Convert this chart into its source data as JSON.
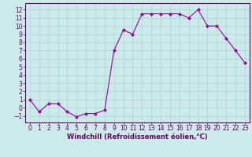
{
  "x": [
    0,
    1,
    2,
    3,
    4,
    5,
    6,
    7,
    8,
    9,
    10,
    11,
    12,
    13,
    14,
    15,
    16,
    17,
    18,
    19,
    20,
    21,
    22,
    23
  ],
  "y": [
    1.0,
    -0.5,
    0.5,
    0.5,
    -0.5,
    -1.1,
    -0.7,
    -0.7,
    -0.3,
    7.0,
    9.5,
    9.0,
    11.5,
    11.5,
    11.5,
    11.5,
    11.5,
    11.0,
    12.0,
    10.0,
    10.0,
    8.5,
    7.0,
    5.5
  ],
  "line_color": "#990099",
  "marker": "D",
  "marker_size": 2,
  "bg_color": "#cceaea",
  "grid_color": "#aad4d4",
  "xlabel": "Windchill (Refroidissement éolien,°C)",
  "xlabel_color": "#660066",
  "tick_color": "#660066",
  "ylim": [
    -1.8,
    12.8
  ],
  "xlim": [
    -0.5,
    23.5
  ],
  "yticks": [
    -1,
    0,
    1,
    2,
    3,
    4,
    5,
    6,
    7,
    8,
    9,
    10,
    11,
    12
  ],
  "xticks": [
    0,
    1,
    2,
    3,
    4,
    5,
    6,
    7,
    8,
    9,
    10,
    11,
    12,
    13,
    14,
    15,
    16,
    17,
    18,
    19,
    20,
    21,
    22,
    23
  ],
  "tick_fontsize": 5.5,
  "xlabel_fontsize": 6.0,
  "linewidth": 0.8
}
